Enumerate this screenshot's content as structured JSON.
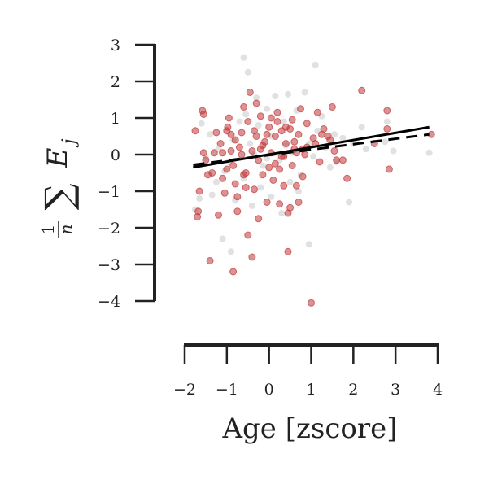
{
  "chart_data": {
    "type": "scatter",
    "xlabel": "Age [zscore]",
    "ylabel": "1/n ∑ E_j",
    "ylabel_parts": {
      "num": "1",
      "den": "n",
      "sum": "∑",
      "var": "E",
      "sub": "j"
    },
    "xlim": [
      -2,
      4
    ],
    "ylim": [
      -4,
      3
    ],
    "x_ticks": [
      -2,
      -1,
      0,
      1,
      2,
      3,
      4
    ],
    "x_tick_labels": [
      "−2",
      "−1",
      "0",
      "1",
      "2",
      "3",
      "4"
    ],
    "y_ticks": [
      3,
      2,
      1,
      0,
      -1,
      -2,
      -3,
      -4
    ],
    "y_tick_labels": [
      "3",
      "2",
      "1",
      "0",
      "−1",
      "−2",
      "−3",
      "−4"
    ],
    "grid": false,
    "colors": {
      "red_points": "#c0393b",
      "gray_points": "#bdbdbd",
      "fit_lines": "#000000",
      "axes": "#222222"
    },
    "series": [
      {
        "group": "gray",
        "points": [
          [
            -0.6,
            2.65
          ],
          [
            -0.5,
            2.25
          ],
          [
            1.1,
            2.45
          ],
          [
            -1.6,
            0.85
          ],
          [
            -1.4,
            0.55
          ],
          [
            -1.2,
            0.15
          ],
          [
            -1.05,
            -0.45
          ],
          [
            -0.95,
            -0.2
          ],
          [
            -0.85,
            0.4
          ],
          [
            -0.7,
            0.9
          ],
          [
            -0.55,
            1.1
          ],
          [
            -0.45,
            0.3
          ],
          [
            -0.3,
            1.55
          ],
          [
            -0.25,
            0.8
          ],
          [
            -0.15,
            -0.3
          ],
          [
            -0.05,
            1.25
          ],
          [
            0.05,
            0.5
          ],
          [
            0.15,
            1.6
          ],
          [
            0.25,
            -0.15
          ],
          [
            0.35,
            0.9
          ],
          [
            0.45,
            1.65
          ],
          [
            0.55,
            0.05
          ],
          [
            0.65,
            1.2
          ],
          [
            0.75,
            -0.55
          ],
          [
            0.85,
            1.7
          ],
          [
            0.95,
            0.3
          ],
          [
            1.05,
            -0.05
          ],
          [
            1.15,
            0.65
          ],
          [
            1.25,
            1.05
          ],
          [
            1.35,
            0.2
          ],
          [
            1.45,
            -0.35
          ],
          [
            1.55,
            0.55
          ],
          [
            0.5,
            -0.75
          ],
          [
            -0.2,
            -0.9
          ],
          [
            -0.8,
            -1.25
          ],
          [
            -1.25,
            -0.75
          ],
          [
            -1.5,
            -0.1
          ],
          [
            -0.4,
            -1.4
          ],
          [
            0.05,
            -1.15
          ],
          [
            -0.6,
            -0.65
          ],
          [
            -1.1,
            -2.3
          ],
          [
            -0.9,
            -2.65
          ],
          [
            0.95,
            -2.45
          ],
          [
            1.9,
            -1.3
          ],
          [
            2.0,
            0.3
          ],
          [
            2.3,
            0.15
          ],
          [
            2.2,
            0.75
          ],
          [
            2.75,
            0.35
          ],
          [
            2.8,
            0.9
          ],
          [
            2.95,
            0.1
          ],
          [
            3.8,
            0.05
          ],
          [
            -1.75,
            -1.5
          ],
          [
            -1.35,
            -1.1
          ],
          [
            0.3,
            -1.6
          ],
          [
            0.7,
            -1.0
          ],
          [
            -0.05,
            -0.1
          ],
          [
            0.4,
            0.25
          ],
          [
            1.6,
            -0.2
          ],
          [
            1.75,
            0.45
          ],
          [
            -1.65,
            -1.2
          ],
          [
            -0.35,
            0.0
          ]
        ]
      },
      {
        "group": "red",
        "points": [
          [
            -1.75,
            0.65
          ],
          [
            -1.7,
            -1.7
          ],
          [
            -1.68,
            -1.55
          ],
          [
            -1.65,
            -1.0
          ],
          [
            -1.55,
            0.05
          ],
          [
            -1.5,
            -0.15
          ],
          [
            -1.58,
            1.2
          ],
          [
            -1.55,
            1.1
          ],
          [
            -1.4,
            -2.9
          ],
          [
            -1.3,
            0.05
          ],
          [
            -1.25,
            0.6
          ],
          [
            -1.15,
            0.3
          ],
          [
            -1.1,
            -0.65
          ],
          [
            -1.05,
            -1.05
          ],
          [
            -1.0,
            -0.4
          ],
          [
            -0.98,
            0.75
          ],
          [
            -0.95,
            1.0
          ],
          [
            -0.9,
            0.55
          ],
          [
            -0.85,
            -0.3
          ],
          [
            -0.8,
            -0.8
          ],
          [
            -0.75,
            -1.15
          ],
          [
            -0.7,
            0.2
          ],
          [
            -0.65,
            0.6
          ],
          [
            -0.6,
            1.3
          ],
          [
            -0.55,
            -0.5
          ],
          [
            -0.5,
            0.9
          ],
          [
            -0.45,
            1.7
          ],
          [
            -0.4,
            0.1
          ],
          [
            -0.35,
            -0.95
          ],
          [
            -0.3,
            0.5
          ],
          [
            -0.25,
            -0.15
          ],
          [
            -0.2,
            1.05
          ],
          [
            -0.15,
            -0.55
          ],
          [
            -0.1,
            0.35
          ],
          [
            -0.05,
            -1.3
          ],
          [
            0.0,
            0.75
          ],
          [
            0.05,
            0.05
          ],
          [
            0.1,
            -0.7
          ],
          [
            0.15,
            0.5
          ],
          [
            0.2,
            1.15
          ],
          [
            0.25,
            -0.4
          ],
          [
            0.3,
            0.65
          ],
          [
            0.35,
            -0.05
          ],
          [
            0.4,
            0.3
          ],
          [
            0.45,
            -1.6
          ],
          [
            0.5,
            0.7
          ],
          [
            0.55,
            -0.3
          ],
          [
            0.6,
            0.15
          ],
          [
            0.65,
            -0.85
          ],
          [
            0.7,
            0.55
          ],
          [
            0.75,
            1.25
          ],
          [
            0.8,
            -0.6
          ],
          [
            0.85,
            0.0
          ],
          [
            0.9,
            0.85
          ],
          [
            1.0,
            -4.05
          ],
          [
            1.1,
            0.3
          ],
          [
            1.15,
            1.15
          ],
          [
            1.2,
            -0.2
          ],
          [
            1.3,
            0.7
          ],
          [
            1.4,
            0.5
          ],
          [
            1.5,
            1.3
          ],
          [
            1.55,
            0.1
          ],
          [
            1.6,
            -0.15
          ],
          [
            1.75,
            -0.15
          ],
          [
            1.85,
            -0.65
          ],
          [
            2.2,
            1.75
          ],
          [
            2.5,
            0.3
          ],
          [
            2.8,
            1.2
          ],
          [
            2.8,
            0.7
          ],
          [
            2.85,
            -0.4
          ],
          [
            3.85,
            0.55
          ],
          [
            -0.85,
            -3.2
          ],
          [
            -0.4,
            -2.8
          ],
          [
            -0.5,
            -2.2
          ],
          [
            0.45,
            -2.65
          ],
          [
            -1.2,
            -1.65
          ],
          [
            -0.75,
            -1.55
          ],
          [
            -0.25,
            -1.75
          ],
          [
            0.25,
            -1.35
          ],
          [
            0.5,
            -1.45
          ],
          [
            -0.65,
            0.0
          ],
          [
            -0.2,
            0.15
          ],
          [
            0.15,
            -0.25
          ],
          [
            0.6,
            0.35
          ],
          [
            -1.35,
            -0.5
          ],
          [
            -0.9,
            0.1
          ],
          [
            -0.35,
            0.65
          ],
          [
            0.05,
            1.0
          ],
          [
            0.4,
            0.75
          ],
          [
            0.9,
            0.2
          ],
          [
            1.25,
            0.55
          ],
          [
            -1.1,
            0.05
          ],
          [
            -0.55,
            -0.9
          ],
          [
            0.7,
            -1.3
          ],
          [
            -0.05,
            0.55
          ],
          [
            0.3,
            -0.05
          ],
          [
            -0.8,
            0.4
          ],
          [
            0.55,
            0.95
          ],
          [
            1.05,
            0.45
          ],
          [
            -1.45,
            -0.55
          ],
          [
            0.0,
            -0.35
          ],
          [
            -0.6,
            -0.55
          ],
          [
            0.2,
            0.9
          ],
          [
            -0.3,
            1.4
          ],
          [
            0.8,
            0.15
          ],
          [
            1.45,
            0.4
          ],
          [
            -1.0,
            0.65
          ],
          [
            -0.15,
            0.25
          ],
          [
            0.35,
            -0.85
          ],
          [
            0.65,
            0.05
          ]
        ]
      }
    ],
    "fit_lines": [
      {
        "style": "solid",
        "x": [
          -1.8,
          3.8
        ],
        "y": [
          -0.35,
          0.75
        ]
      },
      {
        "style": "dashed",
        "x": [
          -1.8,
          3.8
        ],
        "y": [
          -0.28,
          0.55
        ]
      }
    ]
  }
}
